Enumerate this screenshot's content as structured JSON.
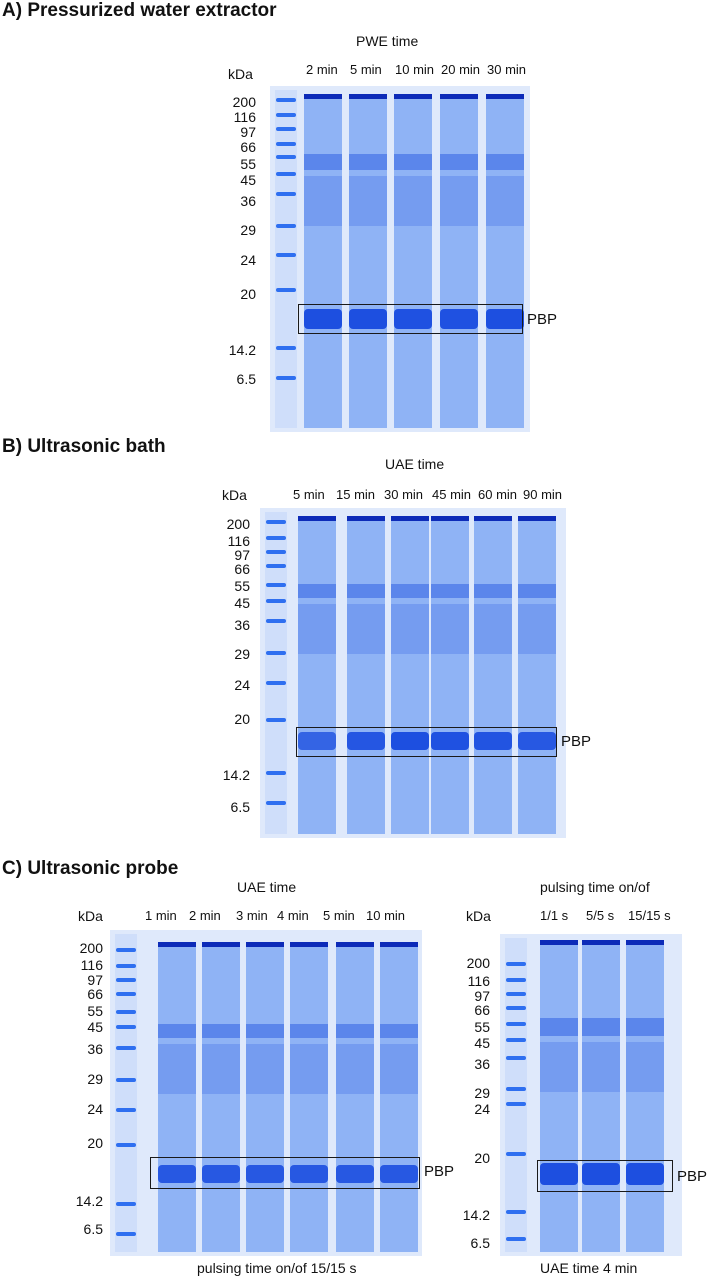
{
  "colors": {
    "gel_bg": "#dfe9fb",
    "lane": "#4d86f0",
    "band": "#1d4fe0",
    "band_dark": "#0d2bb8",
    "ladder": "#2f6ff0"
  },
  "panel_a": {
    "title": "A) Pressurized water extractor",
    "caption": "PWE time",
    "kda": "kDa",
    "lanes": [
      "2 min",
      "5 min",
      "10 min",
      "20 min",
      "30 min"
    ],
    "markers": [
      "200",
      "116",
      "97",
      "66",
      "55",
      "45",
      "36",
      "29",
      "24",
      "20",
      "14.2",
      "6.5"
    ],
    "box_label": "PBP",
    "band_strength": [
      1,
      1,
      0.95,
      0.95,
      1
    ]
  },
  "panel_b": {
    "title": "B) Ultrasonic bath",
    "caption": "UAE time",
    "kda": "kDa",
    "lanes": [
      "5 min",
      "15 min",
      "30 min",
      "45 min",
      "60 min",
      "90 min"
    ],
    "markers": [
      "200",
      "116",
      "97",
      "66",
      "55",
      "45",
      "36",
      "29",
      "24",
      "20",
      "14.2",
      "6.5"
    ],
    "box_label": "PBP",
    "band_strength": [
      0.55,
      0.85,
      1,
      0.95,
      0.9,
      0.8
    ]
  },
  "panel_c": {
    "title": "C) Ultrasonic probe",
    "left": {
      "caption": "UAE time",
      "kda": "kDa",
      "lanes": [
        "1 min",
        "2 min",
        "3 min",
        "4 min",
        "5 min",
        "10 min"
      ],
      "markers": [
        "200",
        "116",
        "97",
        "66",
        "55",
        "45",
        "36",
        "29",
        "24",
        "20",
        "14.2",
        "6.5"
      ],
      "box_label": "PBP",
      "footer": "pulsing time on/of 15/15 s",
      "band_strength": [
        0.8,
        0.8,
        0.8,
        0.8,
        0.8,
        0.8
      ]
    },
    "right": {
      "caption": "pulsing time on/of",
      "kda": "kDa",
      "lanes": [
        "1/1 s",
        "5/5 s",
        "15/15 s"
      ],
      "markers": [
        "200",
        "116",
        "97",
        "66",
        "55",
        "45",
        "36",
        "29",
        "24",
        "20",
        "14.2",
        "6.5"
      ],
      "box_label": "PBP",
      "footer": "UAE time 4 min",
      "band_strength": [
        1,
        1,
        1
      ]
    }
  }
}
